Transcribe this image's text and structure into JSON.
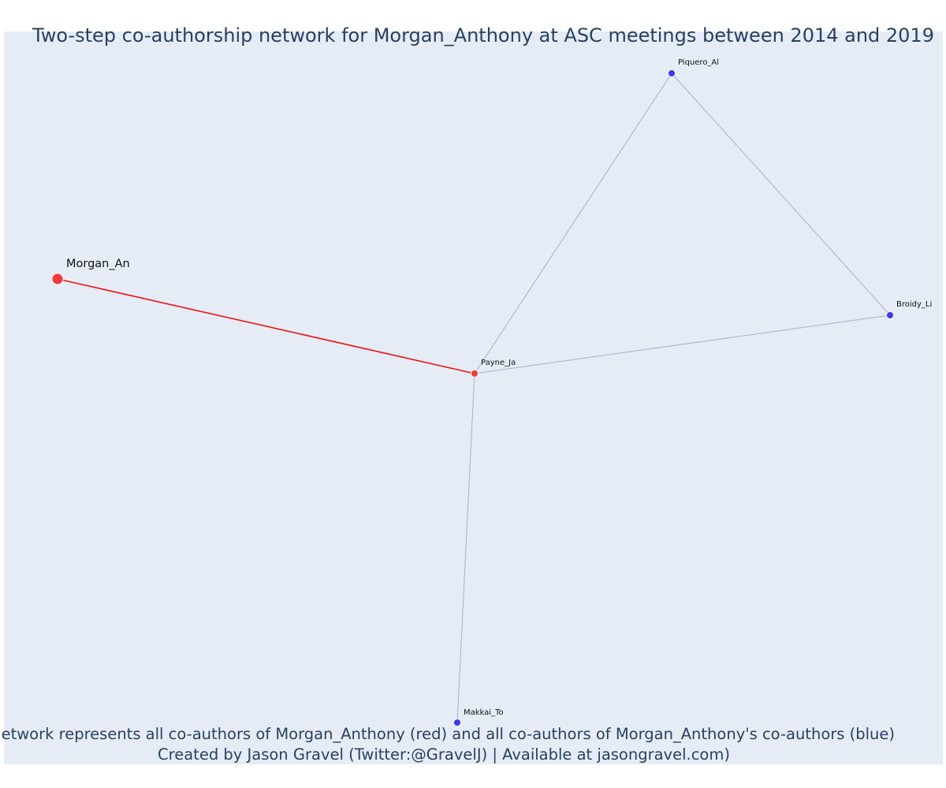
{
  "title": "Two-step co-authorship network for Morgan_Anthony at ASC meetings between 2014 and 2019",
  "caption": {
    "line1": "Network represents all co-authors of Morgan_Anthony (red) and all co-authors of Morgan_Anthony's co-authors (blue)",
    "line2": "Created by Jason Gravel (Twitter:@GravelJ) | Available at jasongravel.com)"
  },
  "colors": {
    "background": "#e5ecf6",
    "focal_edge": "#ee1111",
    "other_edge": "#aab0c4",
    "red_node": "#ef3b3b",
    "blue_node": "#3a3ee8",
    "text": "#2a3f5f"
  },
  "nodes": [
    {
      "id": "morgan",
      "label": "Morgan_An",
      "group": "red",
      "role": "focal"
    },
    {
      "id": "payne",
      "label": "Payne_Ja",
      "group": "red",
      "role": "first-step"
    },
    {
      "id": "piquero",
      "label": "Piquero_Al",
      "group": "blue",
      "role": "second-step"
    },
    {
      "id": "broidy",
      "label": "Broidy_Li",
      "group": "blue",
      "role": "second-step"
    },
    {
      "id": "makkai",
      "label": "Makkai_To",
      "group": "blue",
      "role": "second-step"
    }
  ],
  "edges": [
    {
      "source": "morgan",
      "target": "payne",
      "type": "focal"
    },
    {
      "source": "payne",
      "target": "piquero",
      "type": "other"
    },
    {
      "source": "payne",
      "target": "broidy",
      "type": "other"
    },
    {
      "source": "piquero",
      "target": "broidy",
      "type": "other"
    },
    {
      "source": "payne",
      "target": "makkai",
      "type": "other"
    }
  ]
}
